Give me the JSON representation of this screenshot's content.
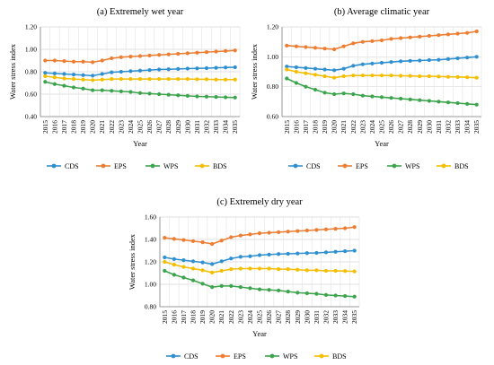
{
  "chart_data": [
    {
      "type": "line",
      "title": "(a) Extremely wet year",
      "xlabel": "Year",
      "ylabel": "Water stress index",
      "ylim": [
        0.4,
        1.2
      ],
      "yticks": [
        "0.40",
        "0.60",
        "0.80",
        "1.00",
        "1.20"
      ],
      "grid": true,
      "legend": "bottom",
      "x": [
        "2015",
        "2016",
        "2017",
        "2018",
        "2019",
        "2020",
        "2021",
        "2022",
        "2023",
        "2024",
        "2025",
        "2026",
        "2027",
        "2028",
        "2029",
        "2030",
        "2031",
        "2032",
        "2033",
        "2034",
        "2035"
      ],
      "series": [
        {
          "name": "CDS",
          "color": "#2E8FD1",
          "values": [
            0.79,
            0.785,
            0.78,
            0.775,
            0.77,
            0.765,
            0.78,
            0.795,
            0.8,
            0.805,
            0.81,
            0.815,
            0.82,
            0.822,
            0.825,
            0.828,
            0.83,
            0.832,
            0.835,
            0.838,
            0.84
          ]
        },
        {
          "name": "EPS",
          "color": "#ED7D31",
          "values": [
            0.9,
            0.9,
            0.895,
            0.89,
            0.89,
            0.885,
            0.9,
            0.92,
            0.93,
            0.935,
            0.94,
            0.945,
            0.95,
            0.955,
            0.96,
            0.965,
            0.97,
            0.975,
            0.98,
            0.985,
            0.99
          ]
        },
        {
          "name": "WPS",
          "color": "#3CA44C",
          "values": [
            0.71,
            0.69,
            0.675,
            0.66,
            0.65,
            0.635,
            0.635,
            0.63,
            0.625,
            0.62,
            0.61,
            0.605,
            0.6,
            0.595,
            0.59,
            0.585,
            0.58,
            0.578,
            0.575,
            0.572,
            0.57
          ]
        },
        {
          "name": "BDS",
          "color": "#F5BE00",
          "values": [
            0.76,
            0.75,
            0.74,
            0.735,
            0.73,
            0.725,
            0.73,
            0.735,
            0.735,
            0.735,
            0.735,
            0.735,
            0.735,
            0.735,
            0.735,
            0.735,
            0.733,
            0.733,
            0.73,
            0.73,
            0.73
          ]
        }
      ]
    },
    {
      "type": "line",
      "title": "(b) Average climatic year",
      "xlabel": "Year",
      "ylabel": "Water stress index",
      "ylim": [
        0.6,
        1.2
      ],
      "yticks": [
        "0.60",
        "0.80",
        "1.00",
        "1.20"
      ],
      "grid": true,
      "legend": "bottom",
      "x": [
        "2015",
        "2016",
        "2017",
        "2018",
        "2019",
        "2020",
        "2021",
        "2022",
        "2023",
        "2024",
        "2025",
        "2026",
        "2027",
        "2028",
        "2029",
        "2030",
        "2031",
        "2032",
        "2033",
        "2034",
        "2035"
      ],
      "series": [
        {
          "name": "CDS",
          "color": "#2E8FD1",
          "values": [
            0.935,
            0.93,
            0.925,
            0.92,
            0.915,
            0.91,
            0.92,
            0.94,
            0.95,
            0.955,
            0.96,
            0.965,
            0.97,
            0.973,
            0.975,
            0.978,
            0.98,
            0.985,
            0.99,
            0.995,
            1.0
          ]
        },
        {
          "name": "EPS",
          "color": "#ED7D31",
          "values": [
            1.075,
            1.07,
            1.065,
            1.06,
            1.055,
            1.05,
            1.07,
            1.09,
            1.1,
            1.105,
            1.11,
            1.12,
            1.125,
            1.13,
            1.135,
            1.14,
            1.145,
            1.15,
            1.155,
            1.16,
            1.17
          ]
        },
        {
          "name": "WPS",
          "color": "#3CA44C",
          "values": [
            0.855,
            0.825,
            0.8,
            0.78,
            0.76,
            0.75,
            0.755,
            0.75,
            0.74,
            0.735,
            0.73,
            0.725,
            0.72,
            0.715,
            0.71,
            0.705,
            0.7,
            0.695,
            0.69,
            0.685,
            0.68
          ]
        },
        {
          "name": "BDS",
          "color": "#F5BE00",
          "values": [
            0.915,
            0.9,
            0.89,
            0.88,
            0.87,
            0.86,
            0.87,
            0.875,
            0.875,
            0.875,
            0.875,
            0.875,
            0.873,
            0.872,
            0.87,
            0.87,
            0.868,
            0.866,
            0.865,
            0.863,
            0.86
          ]
        }
      ]
    },
    {
      "type": "line",
      "title": "(c) Extremely dry year",
      "xlabel": "Year",
      "ylabel": "Water stress index",
      "ylim": [
        0.8,
        1.6
      ],
      "yticks": [
        "0.80",
        "1.00",
        "1.20",
        "1.40",
        "1.60"
      ],
      "grid": true,
      "legend": "bottom",
      "x": [
        "2015",
        "2016",
        "2017",
        "2018",
        "2019",
        "2020",
        "2021",
        "2022",
        "2023",
        "2024",
        "2025",
        "2026",
        "2027",
        "2028",
        "2029",
        "2030",
        "2031",
        "2032",
        "2033",
        "2034",
        "2035"
      ],
      "series": [
        {
          "name": "CDS",
          "color": "#2E8FD1",
          "values": [
            1.24,
            1.225,
            1.215,
            1.205,
            1.195,
            1.18,
            1.205,
            1.23,
            1.245,
            1.25,
            1.26,
            1.265,
            1.27,
            1.272,
            1.275,
            1.278,
            1.28,
            1.285,
            1.29,
            1.295,
            1.3
          ]
        },
        {
          "name": "EPS",
          "color": "#ED7D31",
          "values": [
            1.415,
            1.405,
            1.395,
            1.385,
            1.375,
            1.36,
            1.39,
            1.42,
            1.435,
            1.445,
            1.455,
            1.46,
            1.465,
            1.47,
            1.475,
            1.48,
            1.485,
            1.49,
            1.495,
            1.5,
            1.51
          ]
        },
        {
          "name": "WPS",
          "color": "#3CA44C",
          "values": [
            1.12,
            1.085,
            1.06,
            1.035,
            1.005,
            0.975,
            0.985,
            0.985,
            0.975,
            0.965,
            0.955,
            0.95,
            0.945,
            0.935,
            0.925,
            0.92,
            0.915,
            0.905,
            0.9,
            0.895,
            0.89
          ]
        },
        {
          "name": "BDS",
          "color": "#F5BE00",
          "values": [
            1.2,
            1.175,
            1.155,
            1.14,
            1.125,
            1.105,
            1.12,
            1.135,
            1.14,
            1.14,
            1.14,
            1.14,
            1.135,
            1.135,
            1.13,
            1.125,
            1.125,
            1.12,
            1.12,
            1.118,
            1.115
          ]
        }
      ]
    }
  ]
}
